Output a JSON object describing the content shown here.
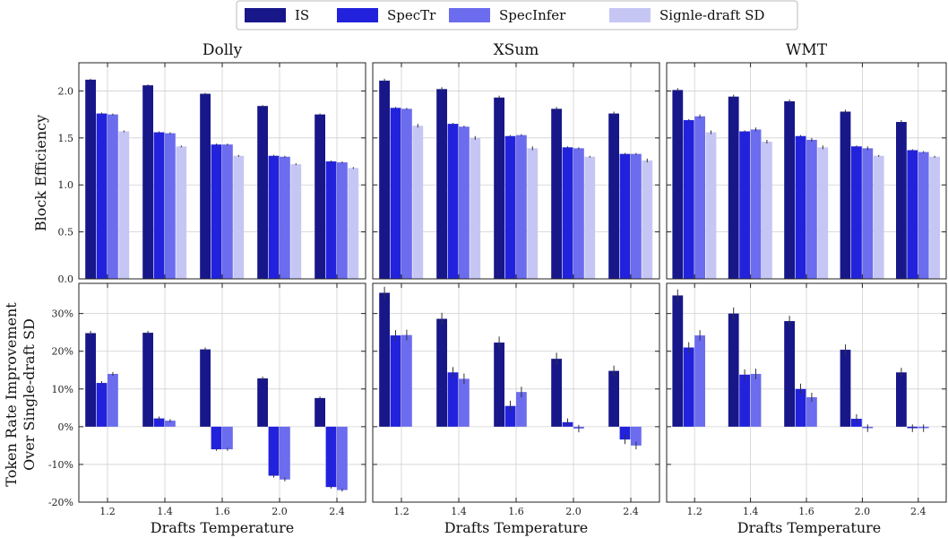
{
  "legend": {
    "entries": [
      "IS",
      "SpecTr",
      "SpecInfer",
      "Signle-draft SD"
    ]
  },
  "colors": {
    "IS": "#17178a",
    "SpecTr": "#2222dd",
    "SpecInfer": "#6c6cee",
    "Signle-draft SD": "#c6c6f5"
  },
  "labels": {
    "xlabel": "Drafts Temperature",
    "ylabel_top": "Block Efficiency",
    "ylabel_bottom_line1": "Token Rate Improvement",
    "ylabel_bottom_line2": "Over Single-draft SD"
  },
  "chart_data": [
    {
      "type": "bar",
      "panel": "block-efficiency",
      "title": "Dolly",
      "categories": [
        "1.2",
        "1.4",
        "1.6",
        "2.0",
        "2.4"
      ],
      "ylabel": "Block Efficiency",
      "ylim": [
        0,
        2.3
      ],
      "yticks": [
        0.0,
        0.5,
        1.0,
        1.5,
        2.0
      ],
      "ytick_labels": [
        "0.0",
        "0.5",
        "1.0",
        "1.5",
        "2.0"
      ],
      "series": [
        {
          "name": "IS",
          "values": [
            2.12,
            2.06,
            1.97,
            1.84,
            1.75
          ],
          "errors": [
            0.01,
            0.01,
            0.01,
            0.01,
            0.01
          ]
        },
        {
          "name": "SpecTr",
          "values": [
            1.76,
            1.56,
            1.43,
            1.31,
            1.25
          ],
          "errors": [
            0.01,
            0.01,
            0.01,
            0.01,
            0.01
          ]
        },
        {
          "name": "SpecInfer",
          "values": [
            1.75,
            1.55,
            1.43,
            1.3,
            1.24
          ],
          "errors": [
            0.01,
            0.01,
            0.01,
            0.01,
            0.01
          ]
        },
        {
          "name": "Signle-draft SD",
          "values": [
            1.57,
            1.41,
            1.31,
            1.22,
            1.18
          ],
          "errors": [
            0.01,
            0.01,
            0.01,
            0.01,
            0.01
          ]
        }
      ]
    },
    {
      "type": "bar",
      "panel": "block-efficiency",
      "title": "XSum",
      "categories": [
        "1.2",
        "1.4",
        "1.6",
        "2.0",
        "2.4"
      ],
      "ylim": [
        0,
        2.3
      ],
      "yticks": [
        0.0,
        0.5,
        1.0,
        1.5,
        2.0
      ],
      "series": [
        {
          "name": "IS",
          "values": [
            2.11,
            2.02,
            1.93,
            1.81,
            1.76
          ],
          "errors": [
            0.02,
            0.02,
            0.02,
            0.02,
            0.02
          ]
        },
        {
          "name": "SpecTr",
          "values": [
            1.82,
            1.65,
            1.52,
            1.4,
            1.33
          ],
          "errors": [
            0.01,
            0.01,
            0.01,
            0.01,
            0.01
          ]
        },
        {
          "name": "SpecInfer",
          "values": [
            1.81,
            1.62,
            1.53,
            1.39,
            1.33
          ],
          "errors": [
            0.01,
            0.01,
            0.01,
            0.01,
            0.01
          ]
        },
        {
          "name": "Signle-draft SD",
          "values": [
            1.63,
            1.5,
            1.39,
            1.3,
            1.26
          ],
          "errors": [
            0.02,
            0.02,
            0.02,
            0.01,
            0.02
          ]
        }
      ]
    },
    {
      "type": "bar",
      "panel": "block-efficiency",
      "title": "WMT",
      "categories": [
        "1.2",
        "1.4",
        "1.6",
        "2.0",
        "2.4"
      ],
      "ylim": [
        0,
        2.3
      ],
      "yticks": [
        0.0,
        0.5,
        1.0,
        1.5,
        2.0
      ],
      "series": [
        {
          "name": "IS",
          "values": [
            2.01,
            1.94,
            1.89,
            1.78,
            1.67
          ],
          "errors": [
            0.02,
            0.02,
            0.02,
            0.02,
            0.02
          ]
        },
        {
          "name": "SpecTr",
          "values": [
            1.69,
            1.57,
            1.52,
            1.41,
            1.37
          ],
          "errors": [
            0.01,
            0.01,
            0.01,
            0.01,
            0.01
          ]
        },
        {
          "name": "SpecInfer",
          "values": [
            1.73,
            1.59,
            1.48,
            1.39,
            1.35
          ],
          "errors": [
            0.02,
            0.02,
            0.02,
            0.02,
            0.01
          ]
        },
        {
          "name": "Signle-draft SD",
          "values": [
            1.56,
            1.46,
            1.4,
            1.31,
            1.3
          ],
          "errors": [
            0.02,
            0.02,
            0.02,
            0.01,
            0.01
          ]
        }
      ]
    },
    {
      "type": "bar",
      "panel": "token-rate",
      "title": "Dolly",
      "categories": [
        "1.2",
        "1.4",
        "1.6",
        "2.0",
        "2.4"
      ],
      "xlabel": "Drafts Temperature",
      "ylabel": "Token Rate Improvement Over Single-draft SD",
      "ylim": [
        -20,
        38
      ],
      "yticks": [
        -20,
        -10,
        0,
        10,
        20,
        30
      ],
      "ytick_labels": [
        "-20%",
        "-10%",
        "0%",
        "10%",
        "20%",
        "30%"
      ],
      "series": [
        {
          "name": "IS",
          "values": [
            24.8,
            24.9,
            20.5,
            12.8,
            7.6
          ],
          "errors": [
            0.6,
            0.5,
            0.5,
            0.5,
            0.4
          ]
        },
        {
          "name": "SpecTr",
          "values": [
            11.6,
            2.2,
            -6.0,
            -13.0,
            -16.0
          ],
          "errors": [
            0.5,
            0.5,
            0.4,
            0.5,
            0.4
          ]
        },
        {
          "name": "SpecInfer",
          "values": [
            14.0,
            1.6,
            -6.0,
            -14.0,
            -16.8
          ],
          "errors": [
            0.5,
            0.4,
            0.4,
            0.5,
            0.4
          ]
        }
      ]
    },
    {
      "type": "bar",
      "panel": "token-rate",
      "title": "XSum",
      "categories": [
        "1.2",
        "1.4",
        "1.6",
        "2.0",
        "2.4"
      ],
      "xlabel": "Drafts Temperature",
      "ylim": [
        -20,
        38
      ],
      "yticks": [
        -20,
        -10,
        0,
        10,
        20,
        30
      ],
      "series": [
        {
          "name": "IS",
          "values": [
            35.5,
            28.6,
            22.3,
            18.0,
            14.8
          ],
          "errors": [
            1.6,
            1.6,
            1.6,
            1.6,
            1.4
          ]
        },
        {
          "name": "SpecTr",
          "values": [
            24.2,
            14.4,
            5.5,
            1.2,
            -3.4
          ],
          "errors": [
            1.4,
            1.4,
            1.4,
            1.0,
            1.2
          ]
        },
        {
          "name": "SpecInfer",
          "values": [
            24.3,
            12.7,
            9.2,
            -0.5,
            -5.0
          ],
          "errors": [
            1.4,
            1.4,
            1.4,
            1.0,
            1.0
          ]
        }
      ]
    },
    {
      "type": "bar",
      "panel": "token-rate",
      "title": "WMT",
      "categories": [
        "1.2",
        "1.4",
        "1.6",
        "2.0",
        "2.4"
      ],
      "xlabel": "Drafts Temperature",
      "ylim": [
        -20,
        38
      ],
      "yticks": [
        -20,
        -10,
        0,
        10,
        20,
        30
      ],
      "series": [
        {
          "name": "IS",
          "values": [
            34.8,
            30.0,
            28.0,
            20.4,
            14.4
          ],
          "errors": [
            1.6,
            1.6,
            1.4,
            1.4,
            1.2
          ]
        },
        {
          "name": "SpecTr",
          "values": [
            21.0,
            13.8,
            10.0,
            2.1,
            -0.4
          ],
          "errors": [
            1.4,
            1.4,
            1.4,
            1.2,
            1.0
          ]
        },
        {
          "name": "SpecInfer",
          "values": [
            24.2,
            14.0,
            7.8,
            -0.4,
            -0.4
          ],
          "errors": [
            1.4,
            1.4,
            1.2,
            1.0,
            1.0
          ]
        }
      ]
    }
  ]
}
